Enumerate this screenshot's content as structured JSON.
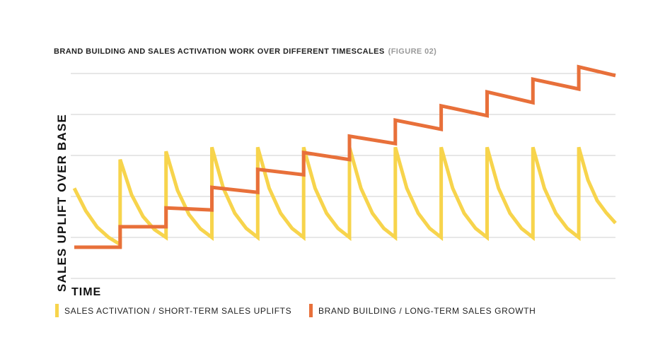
{
  "chart_data": {
    "type": "line",
    "title": "BRAND BUILDING AND SALES ACTIVATION WORK OVER DIFFERENT TIMESCALES",
    "title_note": "(FIGURE 02)",
    "y_label": "SALES UPLIFT OVER BASE",
    "x_label": "TIME",
    "xlim": [
      0,
      11.8
    ],
    "ylim": [
      0,
      5.3
    ],
    "yticks": [
      0,
      1,
      2,
      3,
      4,
      5
    ],
    "grid": true,
    "legend": "bottom",
    "series": [
      {
        "name": "SALES ACTIVATION / SHORT-TERM SALES UPLIFTS",
        "color": "#f7d44c",
        "x": [
          0,
          0.25,
          0.5,
          0.75,
          1,
          1,
          1.25,
          1.5,
          1.75,
          2,
          2,
          2.25,
          2.5,
          2.75,
          3,
          3,
          3.25,
          3.5,
          3.75,
          4,
          4,
          4.25,
          4.5,
          4.75,
          5,
          5,
          5.25,
          5.5,
          5.75,
          6,
          6,
          6.25,
          6.5,
          6.75,
          7,
          7,
          7.25,
          7.5,
          7.75,
          8,
          8,
          8.25,
          8.5,
          8.75,
          9,
          9,
          9.25,
          9.5,
          9.75,
          10,
          10,
          10.25,
          10.5,
          10.75,
          11,
          11,
          11.2,
          11.4,
          11.6,
          11.8
        ],
        "values": [
          2.2,
          1.65,
          1.25,
          1.0,
          0.83,
          2.9,
          2.04,
          1.51,
          1.19,
          1.0,
          3.1,
          2.15,
          1.56,
          1.21,
          1.0,
          3.2,
          2.2,
          1.59,
          1.22,
          1.0,
          3.2,
          2.2,
          1.59,
          1.22,
          1.0,
          3.2,
          2.2,
          1.59,
          1.22,
          1.0,
          3.2,
          2.2,
          1.59,
          1.22,
          1.0,
          3.2,
          2.2,
          1.59,
          1.22,
          1.0,
          3.2,
          2.2,
          1.59,
          1.22,
          1.0,
          3.2,
          2.2,
          1.59,
          1.22,
          1.0,
          3.2,
          2.2,
          1.59,
          1.22,
          1.0,
          3.2,
          2.4,
          1.9,
          1.6,
          1.35
        ]
      },
      {
        "name": "BRAND BUILDING / LONG-TERM SALES GROWTH",
        "color": "#e8703a",
        "x": [
          0,
          1,
          1,
          2,
          2,
          3,
          3,
          4,
          4,
          5,
          5,
          6,
          6,
          7,
          7,
          8,
          8,
          9,
          9,
          10,
          10,
          11,
          11,
          11.8
        ],
        "values": [
          0.76,
          0.76,
          1.26,
          1.26,
          1.72,
          1.67,
          2.22,
          2.1,
          2.66,
          2.53,
          3.07,
          2.9,
          3.47,
          3.29,
          3.86,
          3.64,
          4.21,
          3.97,
          4.55,
          4.29,
          4.86,
          4.62,
          5.16,
          4.95
        ]
      }
    ]
  }
}
